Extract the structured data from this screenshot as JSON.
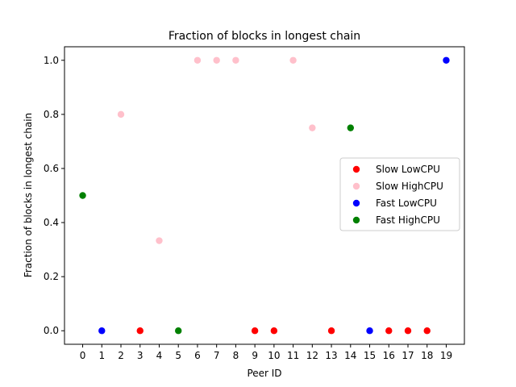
{
  "chart_data": {
    "type": "scatter",
    "title": "Fraction of blocks in longest chain",
    "xlabel": "Peer ID",
    "ylabel": "Fraction of blocks in longest chain",
    "xlim": [
      -0.95,
      19.95
    ],
    "ylim": [
      -0.05,
      1.05
    ],
    "x_ticks": [
      0,
      1,
      2,
      3,
      4,
      5,
      6,
      7,
      8,
      9,
      10,
      11,
      12,
      13,
      14,
      15,
      16,
      17,
      18,
      19
    ],
    "y_ticks": [
      0.0,
      0.2,
      0.4,
      0.6,
      0.8,
      1.0
    ],
    "y_tick_labels": [
      "0.0",
      "0.2",
      "0.4",
      "0.6",
      "0.8",
      "1.0"
    ],
    "grid": false,
    "legend_position": "center-right",
    "series": [
      {
        "name": "Slow LowCPU",
        "color": "#ff0000",
        "x": [
          3,
          9,
          10,
          13,
          16,
          17,
          18
        ],
        "y": [
          0,
          0,
          0,
          0,
          0,
          0,
          0
        ]
      },
      {
        "name": "Slow HighCPU",
        "color": "#ffc0cb",
        "x": [
          2,
          4,
          6,
          7,
          8,
          11,
          12
        ],
        "y": [
          0.8,
          0.333,
          1.0,
          1.0,
          1.0,
          1.0,
          0.75
        ]
      },
      {
        "name": "Fast LowCPU",
        "color": "#0000ff",
        "x": [
          1,
          15,
          19
        ],
        "y": [
          0,
          0,
          1.0
        ]
      },
      {
        "name": "Fast HighCPU",
        "color": "#008000",
        "x": [
          0,
          5,
          14
        ],
        "y": [
          0.5,
          0,
          0.75
        ]
      }
    ]
  }
}
